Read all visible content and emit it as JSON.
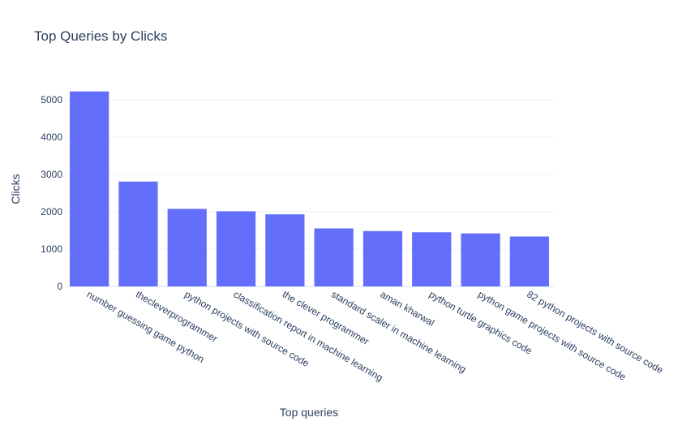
{
  "chart_data": {
    "type": "bar",
    "title": "Top Queries by Clicks",
    "xlabel": "Top queries",
    "ylabel": "Clicks",
    "categories": [
      "number guessing game python",
      "thecleverprogrammer",
      "python projects with source code",
      "classification report in machine learning",
      "the clever programmer",
      "standard scaler in machine learning",
      "aman kharwal",
      "python turtle graphics code",
      "python game projects with source code",
      "82 python projects with source code"
    ],
    "values": [
      5223,
      2809,
      2077,
      2012,
      1931,
      1554,
      1483,
      1450,
      1420,
      1337
    ],
    "ylim": [
      0,
      5498
    ],
    "yticks": [
      0,
      1000,
      2000,
      3000,
      4000,
      5000
    ],
    "grid": true,
    "bar_color": "#636efa",
    "text_color": "#2a3f5f",
    "grid_color": "#ebf0f8"
  }
}
